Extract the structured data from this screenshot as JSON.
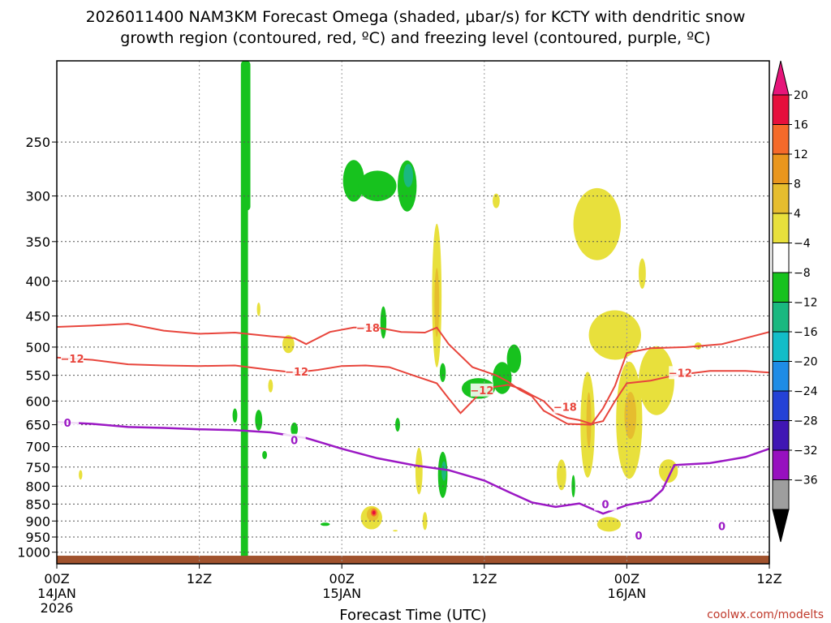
{
  "chart_data": {
    "type": "contour",
    "title_line1": "2026011400 NAM3KM Forecast Omega (shaded, μbar/s) for KCTY with dendritic snow",
    "title_line2": "growth region (contoured, red, ºC) and freezing level (contoured, purple, ºC)",
    "xlabel": "Forecast Time (UTC)",
    "credit": "coolwx.com/modelts",
    "x_range_hours": [
      0,
      60
    ],
    "x_ticks": [
      {
        "hour": 0,
        "label": "00Z",
        "date": "14JAN",
        "year": "2026"
      },
      {
        "hour": 12,
        "label": "12Z",
        "date": "",
        "year": ""
      },
      {
        "hour": 24,
        "label": "00Z",
        "date": "15JAN",
        "year": ""
      },
      {
        "hour": 36,
        "label": "12Z",
        "date": "",
        "year": ""
      },
      {
        "hour": 48,
        "label": "00Z",
        "date": "16JAN",
        "year": ""
      },
      {
        "hour": 60,
        "label": "12Z",
        "date": "",
        "year": ""
      }
    ],
    "y_axis": {
      "type": "pressure_log",
      "range_hpa": [
        1040,
        190
      ],
      "ticks": [
        250,
        300,
        350,
        400,
        450,
        500,
        550,
        600,
        650,
        700,
        750,
        800,
        850,
        900,
        950,
        1000
      ]
    },
    "colorbar": {
      "labels": [
        "20",
        "16",
        "12",
        "8",
        "4",
        "−4",
        "−8",
        "−12",
        "−16",
        "−20",
        "−24",
        "−28",
        "−32",
        "−36"
      ],
      "colors": [
        "#e60f3c",
        "#f56a2a",
        "#e9961d",
        "#e6bd2e",
        "#e8e03c",
        "#ffffff",
        "#17c21e",
        "#1ab880",
        "#13bdc8",
        "#1f8ce6",
        "#2442d6",
        "#4016b4",
        "#9710bf",
        "#9e9e9e"
      ],
      "top_color": "#e6157a",
      "bottom_color": "#000000"
    },
    "ground": {
      "color": "#a0522d",
      "top_hpa": 1012
    },
    "freezing_level": {
      "color": "#9b18c4",
      "label": "0",
      "points": [
        [
          0,
          644
        ],
        [
          3,
          648
        ],
        [
          6,
          655
        ],
        [
          9,
          657
        ],
        [
          12,
          660
        ],
        [
          15,
          662
        ],
        [
          18,
          667
        ],
        [
          21,
          680
        ],
        [
          24,
          705
        ],
        [
          27,
          728
        ],
        [
          30,
          745
        ],
        [
          33,
          758
        ],
        [
          36,
          785
        ],
        [
          38,
          815
        ],
        [
          40,
          845
        ],
        [
          42,
          858
        ],
        [
          44,
          848
        ],
        [
          46,
          878
        ],
        [
          48,
          853
        ],
        [
          50,
          840
        ],
        [
          51,
          810
        ],
        [
          52,
          745
        ],
        [
          55,
          740
        ],
        [
          58,
          725
        ],
        [
          60,
          705
        ]
      ]
    },
    "dgz_top": {
      "color": "#e8453c",
      "label": "−18",
      "points": [
        [
          0,
          467
        ],
        [
          3,
          465
        ],
        [
          6,
          462
        ],
        [
          9,
          473
        ],
        [
          12,
          478
        ],
        [
          15,
          476
        ],
        [
          18,
          482
        ],
        [
          20,
          485
        ],
        [
          21,
          495
        ],
        [
          23,
          475
        ],
        [
          25,
          468
        ],
        [
          27,
          468
        ],
        [
          29,
          475
        ],
        [
          31,
          476
        ],
        [
          32,
          468
        ],
        [
          33,
          495
        ],
        [
          35,
          535
        ],
        [
          37,
          550
        ],
        [
          38,
          562
        ],
        [
          39,
          578
        ],
        [
          40,
          590
        ],
        [
          41,
          620
        ],
        [
          43,
          648
        ],
        [
          45,
          650
        ],
        [
          46,
          615
        ],
        [
          47,
          570
        ],
        [
          48,
          510
        ],
        [
          50,
          502
        ],
        [
          53,
          500
        ],
        [
          56,
          495
        ],
        [
          58,
          485
        ],
        [
          60,
          475
        ]
      ]
    },
    "dgz_bottom": {
      "color": "#e8453c",
      "label": "−12",
      "points": [
        [
          0,
          518
        ],
        [
          3,
          522
        ],
        [
          6,
          530
        ],
        [
          9,
          532
        ],
        [
          12,
          533
        ],
        [
          15,
          532
        ],
        [
          18,
          540
        ],
        [
          20,
          545
        ],
        [
          22,
          540
        ],
        [
          24,
          533
        ],
        [
          26,
          532
        ],
        [
          28,
          535
        ],
        [
          30,
          550
        ],
        [
          32,
          565
        ],
        [
          33,
          595
        ],
        [
          34,
          625
        ],
        [
          35,
          600
        ],
        [
          36,
          575
        ],
        [
          38,
          568
        ],
        [
          39,
          575
        ],
        [
          40,
          588
        ],
        [
          41,
          600
        ],
        [
          42,
          625
        ],
        [
          43,
          635
        ],
        [
          44,
          640
        ],
        [
          45,
          648
        ],
        [
          46,
          642
        ],
        [
          47,
          600
        ],
        [
          48,
          565
        ],
        [
          50,
          560
        ],
        [
          52,
          550
        ],
        [
          55,
          542
        ],
        [
          58,
          542
        ],
        [
          60,
          545
        ]
      ]
    },
    "omega_regions": [
      {
        "c": "#17c21e",
        "t": 15.8,
        "l": 12.5,
        "b": 1030,
        "r": 0.0,
        "min": 190,
        "max": 650
      },
      {
        "c": "#17c21e",
        "t": 16.0,
        "w": 0.3,
        "b": 315,
        "min": 190
      },
      {
        "c": "#17c21e",
        "t": 16.0,
        "w": 0.35,
        "b": 290
      },
      {
        "c": "#17c21e",
        "t": 14.0,
        "w": 0.3,
        "b": 270
      },
      {
        "c": "#17c21e",
        "t": 25.0,
        "w": 0.9,
        "p": 285,
        "h": 40
      },
      {
        "c": "#17c21e",
        "t": 27.0,
        "w": 1.6,
        "p": 290,
        "h": 30
      },
      {
        "c": "#17c21e",
        "t": 29.5,
        "w": 0.8,
        "p": 290,
        "h": 50
      },
      {
        "c": "#1ab880",
        "t": 29.6,
        "w": 0.4,
        "p": 280,
        "h": 22
      },
      {
        "c": "#17c21e",
        "t": 27.5,
        "w": 0.25,
        "p": 460,
        "h": 50
      },
      {
        "c": "#17c21e",
        "t": 37.5,
        "w": 0.8,
        "p": 555,
        "h": 60
      },
      {
        "c": "#17c21e",
        "t": 38.5,
        "w": 0.6,
        "p": 520,
        "h": 50
      },
      {
        "c": "#17c21e",
        "t": 35.5,
        "w": 1.4,
        "p": 575,
        "h": 40
      },
      {
        "c": "#17c21e",
        "t": 32.5,
        "w": 0.25,
        "p": 545,
        "h": 35
      },
      {
        "c": "#17c21e",
        "t": 32.5,
        "w": 0.4,
        "p": 770,
        "h": 120
      },
      {
        "c": "#1ab880",
        "t": 32.6,
        "w": 0.2,
        "p": 760,
        "h": 50
      },
      {
        "c": "#17c21e",
        "t": 28.7,
        "w": 0.2,
        "p": 650,
        "h": 30
      },
      {
        "c": "#17c21e",
        "t": 17.0,
        "w": 0.3,
        "p": 640,
        "h": 45
      },
      {
        "c": "#17c21e",
        "t": 15.0,
        "w": 0.2,
        "p": 630,
        "h": 30
      },
      {
        "c": "#17c21e",
        "t": 20.0,
        "w": 0.3,
        "p": 660,
        "h": 30
      },
      {
        "c": "#17c21e",
        "t": 17.5,
        "w": 0.2,
        "p": 720,
        "h": 20
      },
      {
        "c": "#17c21e",
        "t": 22.6,
        "w": 0.4,
        "p": 910,
        "h": 10
      },
      {
        "c": "#17c21e",
        "t": 43.5,
        "w": 0.15,
        "p": 800,
        "h": 60
      },
      {
        "c": "#e8e03c",
        "t": 32.0,
        "w": 0.4,
        "p": 420,
        "h": 200
      },
      {
        "c": "#e6bd2e",
        "t": 32.0,
        "w": 0.2,
        "p": 430,
        "h": 100
      },
      {
        "c": "#e8e03c",
        "t": 37.0,
        "w": 0.3,
        "p": 305,
        "h": 15
      },
      {
        "c": "#e8e03c",
        "t": 17.0,
        "w": 0.15,
        "p": 440,
        "h": 20
      },
      {
        "c": "#e8e03c",
        "t": 19.5,
        "w": 0.5,
        "p": 495,
        "h": 30
      },
      {
        "c": "#e8e03c",
        "t": 18.0,
        "w": 0.2,
        "p": 570,
        "h": 25
      },
      {
        "c": "#e8e03c",
        "t": 2.0,
        "w": 0.15,
        "p": 770,
        "h": 25
      },
      {
        "c": "#e8e03c",
        "t": 30.5,
        "w": 0.3,
        "p": 760,
        "h": 120
      },
      {
        "c": "#e8e03c",
        "t": 31.0,
        "w": 0.2,
        "p": 900,
        "h": 55
      },
      {
        "c": "#e8e03c",
        "t": 26.5,
        "w": 0.9,
        "p": 890,
        "h": 70
      },
      {
        "c": "#e6bd2e",
        "t": 26.6,
        "w": 0.5,
        "p": 880,
        "h": 40
      },
      {
        "c": "#f56a2a",
        "t": 26.7,
        "w": 0.25,
        "p": 875,
        "h": 22
      },
      {
        "c": "#e60f3c",
        "t": 26.7,
        "w": 0.1,
        "p": 875,
        "h": 12
      },
      {
        "c": "#e8e03c",
        "t": 28.5,
        "w": 0.2,
        "p": 930,
        "h": 5
      },
      {
        "c": "#e8e03c",
        "t": 45.5,
        "w": 2.0,
        "p": 330,
        "h": 80
      },
      {
        "c": "#e8e03c",
        "t": 47.0,
        "w": 2.2,
        "p": 480,
        "h": 80
      },
      {
        "c": "#e8e03c",
        "t": 44.7,
        "w": 0.6,
        "p": 650,
        "h": 230
      },
      {
        "c": "#e6bd2e",
        "t": 44.8,
        "w": 0.2,
        "p": 640,
        "h": 120
      },
      {
        "c": "#e8e03c",
        "t": 48.2,
        "w": 1.1,
        "p": 640,
        "h": 250
      },
      {
        "c": "#e6bd2e",
        "t": 48.3,
        "w": 0.5,
        "p": 630,
        "h": 100
      },
      {
        "c": "#e8e03c",
        "t": 50.5,
        "w": 1.5,
        "p": 560,
        "h": 130
      },
      {
        "c": "#e8e03c",
        "t": 51.5,
        "w": 0.8,
        "p": 760,
        "h": 60
      },
      {
        "c": "#e8e03c",
        "t": 42.5,
        "w": 0.4,
        "p": 770,
        "h": 80
      },
      {
        "c": "#e8e03c",
        "t": 49.3,
        "w": 0.3,
        "p": 390,
        "h": 40
      },
      {
        "c": "#e8e03c",
        "t": 54.0,
        "w": 0.3,
        "p": 498,
        "h": 12
      },
      {
        "c": "#e8e03c",
        "t": 46.5,
        "w": 1.0,
        "p": 910,
        "h": 45
      }
    ]
  }
}
